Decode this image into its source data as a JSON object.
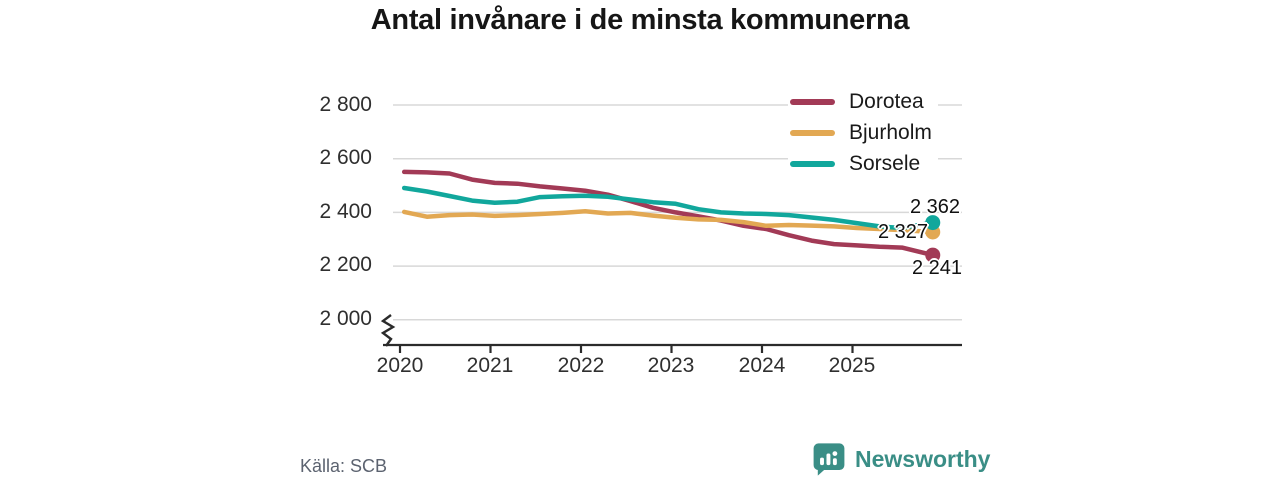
{
  "title": "Antal invånare i de minsta kommunerna",
  "source": "Källa: SCB",
  "branding": {
    "logo_text": "Newsworthy",
    "logo_color": "#3a8e86"
  },
  "colors": {
    "dorotea": "#a23a56",
    "bjurholm": "#e2a853",
    "sorsele": "#11a79c",
    "grid": "#d8d8d8",
    "axis": "#2b2b2b",
    "text": "#1a1a1a",
    "muted": "#5c6370"
  },
  "end_labels": {
    "sorsele": "2 362",
    "bjurholm": "2 327",
    "dorotea": "2 241"
  },
  "chart_data": {
    "type": "line",
    "title": "Antal invånare i de minsta kommunerna",
    "xlabel": "",
    "ylabel": "",
    "grid": "horizontal",
    "legend_position": "top-right",
    "xlim": [
      2020,
      2026
    ],
    "ylim": [
      2000,
      2800
    ],
    "broken_y_axis": true,
    "x": [
      2020.08,
      2020.33,
      2020.58,
      2020.83,
      2021.08,
      2021.33,
      2021.58,
      2021.83,
      2022.08,
      2022.33,
      2022.58,
      2022.83,
      2023.08,
      2023.33,
      2023.58,
      2023.83,
      2024.08,
      2024.33,
      2024.58,
      2024.83,
      2025.08,
      2025.33,
      2025.58,
      2025.92
    ],
    "series": [
      {
        "name": "Dorotea",
        "color": "#a23a56",
        "final_value": 2241,
        "final_label": "2 241",
        "values": [
          2551,
          2549,
          2545,
          2522,
          2510,
          2507,
          2497,
          2489,
          2481,
          2466,
          2442,
          2417,
          2400,
          2385,
          2370,
          2350,
          2338,
          2315,
          2295,
          2282,
          2277,
          2272,
          2269,
          2241
        ]
      },
      {
        "name": "Bjurholm",
        "color": "#e2a853",
        "final_value": 2327,
        "final_label": "2 327",
        "values": [
          2402,
          2384,
          2390,
          2392,
          2387,
          2390,
          2394,
          2398,
          2404,
          2396,
          2398,
          2388,
          2380,
          2374,
          2372,
          2364,
          2350,
          2353,
          2351,
          2348,
          2342,
          2338,
          2334,
          2327
        ]
      },
      {
        "name": "Sorsele",
        "color": "#11a79c",
        "final_value": 2362,
        "final_label": "2 362",
        "values": [
          2491,
          2478,
          2461,
          2444,
          2436,
          2440,
          2457,
          2460,
          2462,
          2458,
          2448,
          2438,
          2432,
          2412,
          2400,
          2396,
          2394,
          2390,
          2381,
          2372,
          2360,
          2348,
          2342,
          2362
        ]
      }
    ],
    "yaxis": {
      "ticks": [
        2800,
        2600,
        2400,
        2200,
        2000
      ],
      "tick_labels": [
        "2 800",
        "2 600",
        "2 400",
        "2 200",
        "2 000"
      ]
    },
    "xaxis": {
      "ticks": [
        2020,
        2021,
        2022,
        2023,
        2024,
        2025
      ],
      "tick_labels": [
        "2020",
        "2021",
        "2022",
        "2023",
        "2024",
        "2025"
      ]
    }
  }
}
